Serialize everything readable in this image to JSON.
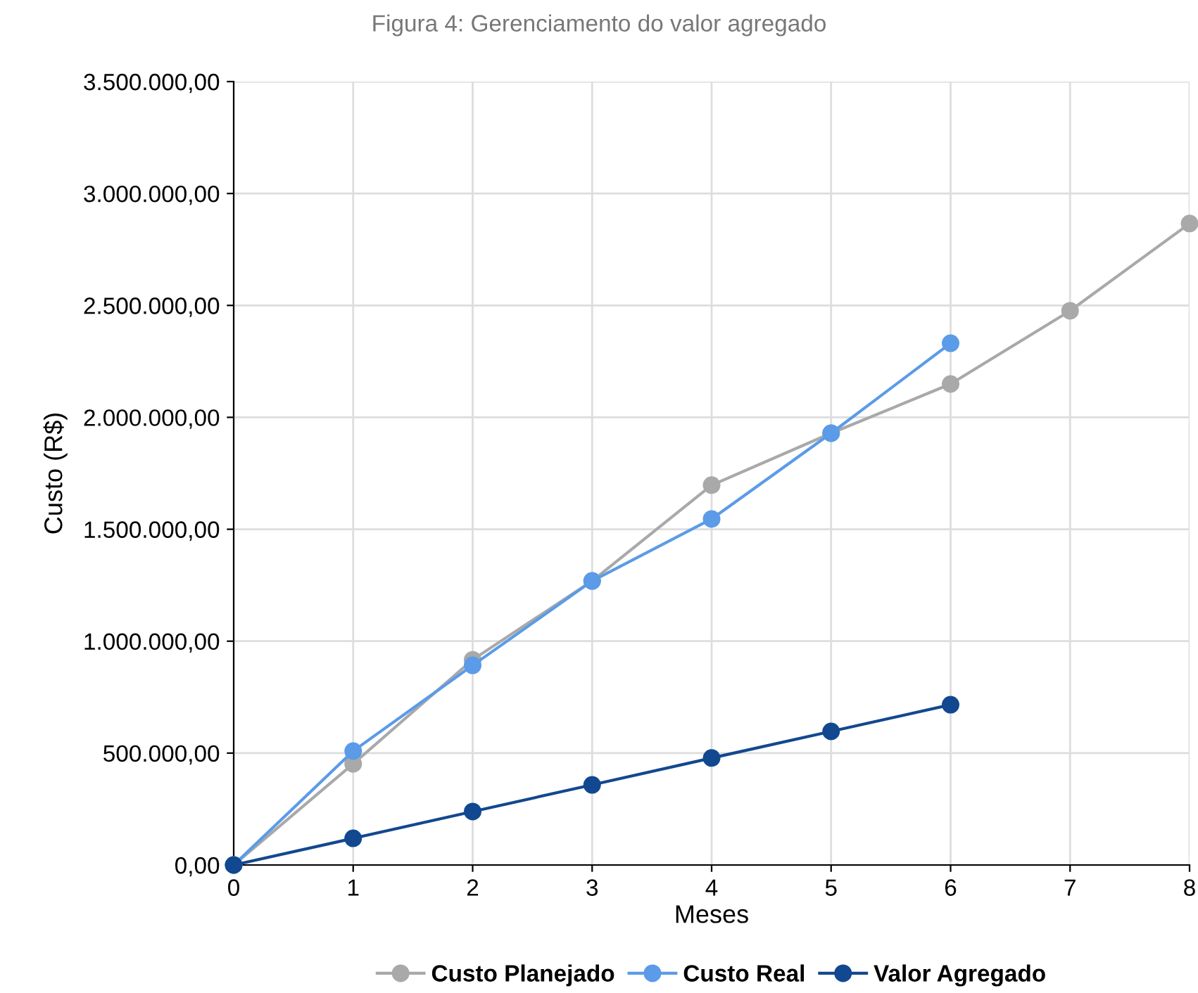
{
  "chart_data": {
    "type": "line",
    "title": "Figura 4: Gerenciamento do valor agregado",
    "xlabel": "Meses",
    "ylabel": "Custo (R$)",
    "series": [
      {
        "name": "Custo Planejado",
        "color": "#a9a9a9",
        "x": [
          0,
          1,
          2,
          3,
          4,
          5,
          6,
          7,
          8
        ],
        "values": [
          0,
          452000,
          917000,
          1269000,
          1697000,
          1929000,
          2149000,
          2476000,
          2866000
        ]
      },
      {
        "name": "Custo Real",
        "color": "#5b9be8",
        "x": [
          0,
          1,
          2,
          3,
          4,
          5,
          6
        ],
        "values": [
          0,
          509000,
          892000,
          1269000,
          1546000,
          1929000,
          2331000
        ]
      },
      {
        "name": "Valor Agregado",
        "color": "#12488f",
        "x": [
          0,
          1,
          2,
          3,
          4,
          5,
          6
        ],
        "values": [
          0,
          119000,
          239000,
          358000,
          478000,
          597000,
          716000
        ]
      }
    ],
    "xlim": [
      0,
      8
    ],
    "xticks": [
      0,
      1,
      2,
      3,
      4,
      5,
      6,
      7,
      8
    ],
    "ylim": [
      0,
      3500000
    ],
    "yticks": [
      {
        "value": 0,
        "label": "0,00"
      },
      {
        "value": 500000,
        "label": "500.000,00"
      },
      {
        "value": 1000000,
        "label": "1.000.000,00"
      },
      {
        "value": 1500000,
        "label": "1.500.000,00"
      },
      {
        "value": 2000000,
        "label": "2.000.000,00"
      },
      {
        "value": 2500000,
        "label": "2.500.000,00"
      },
      {
        "value": 3000000,
        "label": "3.000.000,00"
      },
      {
        "value": 3500000,
        "label": "3.500.000,00"
      }
    ],
    "grid": true,
    "legend": "bottom",
    "marker": "circle",
    "line_style": "solid"
  }
}
